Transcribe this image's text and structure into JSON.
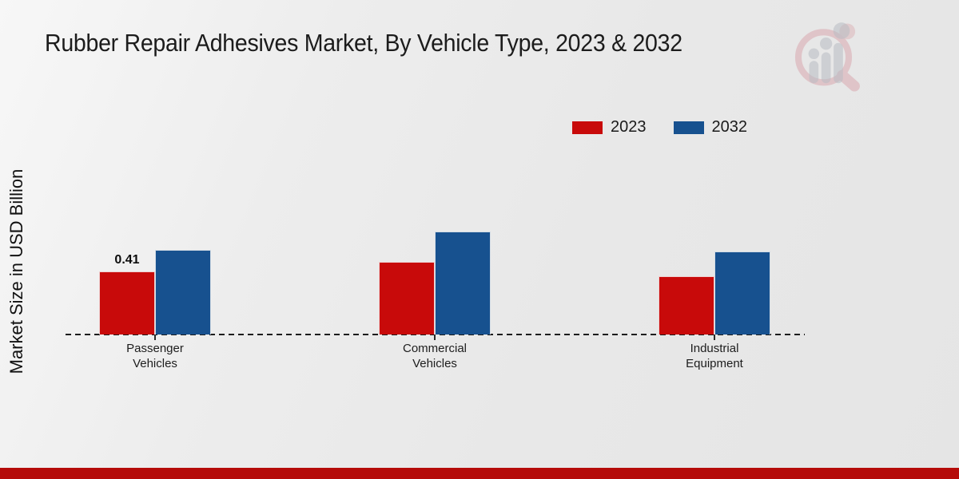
{
  "chart_data": {
    "type": "bar",
    "title": "Rubber Repair Adhesives Market, By Vehicle Type, 2023 & 2032",
    "xlabel": "",
    "ylabel": "Market Size in USD Billion",
    "categories": [
      "Passenger Vehicles",
      "Commercial Vehicles",
      "Industrial Equipment"
    ],
    "series": [
      {
        "name": "2023",
        "color": "#c80a0a",
        "values": [
          0.41,
          0.47,
          0.38
        ],
        "labels": [
          "0.41",
          "",
          ""
        ]
      },
      {
        "name": "2032",
        "color": "#17518f",
        "values": [
          0.55,
          0.67,
          0.54
        ],
        "labels": [
          "",
          "",
          ""
        ]
      }
    ],
    "ylim": [
      0,
      0.75
    ],
    "grid": false,
    "legend_position": "top-right",
    "baseline_style": "dashed",
    "value_label_shown": "0.41"
  },
  "branding": {
    "logo_icon": "magnifier-growth-chart-logo",
    "footer_bar_color": "#b50b09",
    "logo_ring_color": "#d5929b",
    "logo_bar_color": "#b9bcc3"
  }
}
